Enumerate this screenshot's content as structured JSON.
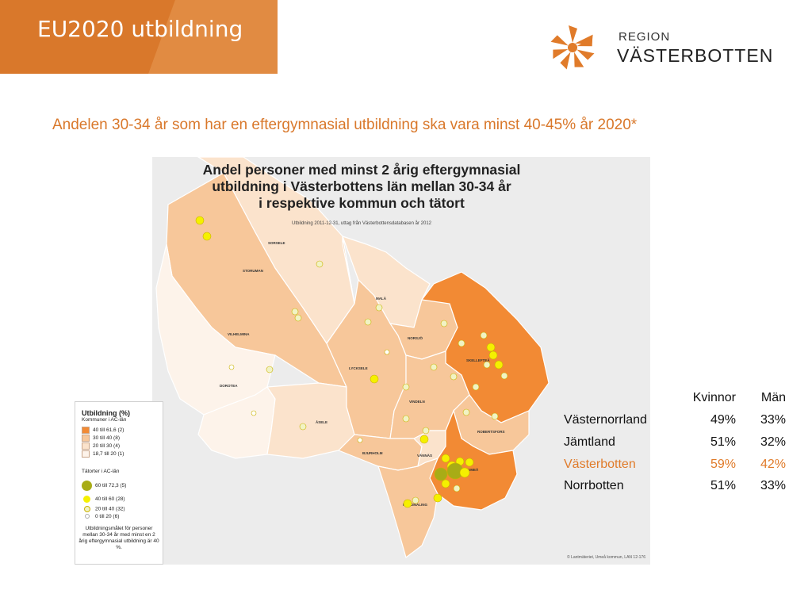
{
  "slide": {
    "title": "EU2020 utbildning",
    "subtitle": "Andelen 30-34 år som har en eftergymnasial utbildning ska vara minst 40-45% år 2020*"
  },
  "logo": {
    "line1": "REGION",
    "line2": "VÄSTERBOTTEN",
    "color": "#e07b2a"
  },
  "map": {
    "title_lines": [
      "Andel personer med minst 2 årig eftergymnasial",
      "utbildning i Västerbottens län mellan 30-34 år",
      "i respektive kommun och tätort"
    ],
    "source": "Utbildning 2011-12-31, uttag från Västerbottensdatabasen år 2012",
    "credit": "© Lantmäteriet, Umeå kommun, LAN 12-176",
    "municipalities": [
      "SORSELE",
      "STORUMAN",
      "MALÅ",
      "NORSJÖ",
      "SKELLEFTEÅ",
      "VILHELMINA",
      "LYCKSELE",
      "DOROTEA",
      "VINDELN",
      "ROBERTSFORS",
      "ÅSELE",
      "BJURHOLM",
      "VÄNNÄS",
      "UMEÅ",
      "NORDMALING"
    ],
    "colors": {
      "c40": "#f28a34",
      "c30": "#f7c79a",
      "c20": "#fbe3cc",
      "c18": "#fdf3ea",
      "dot_large": "#a8ac16",
      "dot_mid": "#f5f000",
      "dot_small": "#f1f3c4",
      "dot_tiny": "#ffffff"
    }
  },
  "legend": {
    "title": "Utbildning (%)",
    "sub": "Kommuner i AC-län",
    "classes": [
      {
        "label": "40",
        "range": "till 61,6",
        "count": "(2)"
      },
      {
        "label": "30",
        "range": "till 40",
        "count": "(8)"
      },
      {
        "label": "20",
        "range": "till 30",
        "count": "(4)"
      },
      {
        "label": "18,7",
        "range": "till 20",
        "count": "(1)"
      }
    ],
    "points_title": "Tätorter i AC-län",
    "points": [
      {
        "label": "60 till 72,3",
        "count": "(5)"
      },
      {
        "label": "40 till 60",
        "count": "(28)"
      },
      {
        "label": "20 till 40",
        "count": "(32)"
      },
      {
        "label": "0 till 20",
        "count": "(6)"
      }
    ],
    "note": "Utbildningsmålet för personer mellan 30-34 år med minst en 2 årig eftergymnasial utbildning är 40 %."
  },
  "stats": {
    "headers": [
      "Kvinnor",
      "Män"
    ],
    "rows": [
      {
        "region": "Västernorrland",
        "kvinnor": "49%",
        "man": "33%"
      },
      {
        "region": "Jämtland",
        "kvinnor": "51%",
        "man": "32%"
      },
      {
        "region": "Västerbotten",
        "kvinnor": "59%",
        "man": "42%",
        "highlight": true
      },
      {
        "region": "Norrbotten",
        "kvinnor": "51%",
        "man": "33%"
      }
    ]
  }
}
